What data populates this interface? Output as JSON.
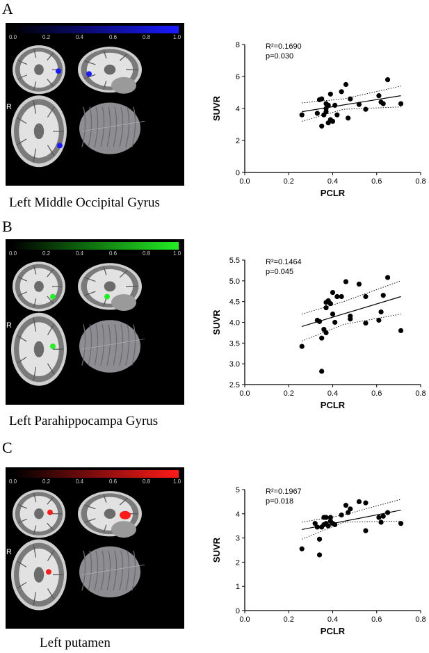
{
  "panels": [
    {
      "letter": "A",
      "caption": "Left Middle Occipital Gyrus",
      "overlay_color": "#1a1aff",
      "colorbar_ticks": [
        "0.0",
        "0.2",
        "0.4",
        "0.6",
        "0.8",
        "1.0"
      ],
      "side_label": "R"
    },
    {
      "letter": "B",
      "caption": "Left Parahippocampa Gyrus",
      "overlay_color": "#22ee22",
      "colorbar_ticks": [
        "0.0",
        "0.2",
        "0.4",
        "0.6",
        "0.8",
        "1.0"
      ],
      "side_label": "R"
    },
    {
      "letter": "C",
      "caption": "Left putamen",
      "overlay_color": "#ff1a1a",
      "colorbar_ticks": [
        "0.0",
        "0.2",
        "0.4",
        "0.6",
        "0.8",
        "1.0"
      ],
      "side_label": "R"
    }
  ],
  "chart_data": [
    {
      "type": "scatter",
      "xlabel": "PCLR",
      "ylabel": "SUVR",
      "xlim": [
        0.0,
        0.8
      ],
      "ylim": [
        0,
        8
      ],
      "xticks": [
        "0.0",
        "0.2",
        "0.4",
        "0.6",
        "0.8"
      ],
      "yticks": [
        "0",
        "2",
        "4",
        "6",
        "8"
      ],
      "annotation_r2": "R²=0.1690",
      "annotation_p": "p=0.030",
      "points": [
        [
          0.26,
          3.6
        ],
        [
          0.33,
          3.7
        ],
        [
          0.34,
          4.55
        ],
        [
          0.35,
          4.6
        ],
        [
          0.35,
          2.9
        ],
        [
          0.36,
          3.6
        ],
        [
          0.37,
          4.3
        ],
        [
          0.37,
          4.0
        ],
        [
          0.37,
          3.8
        ],
        [
          0.38,
          4.2
        ],
        [
          0.38,
          3.1
        ],
        [
          0.39,
          4.9
        ],
        [
          0.39,
          3.3
        ],
        [
          0.4,
          3.2
        ],
        [
          0.41,
          4.2
        ],
        [
          0.42,
          3.6
        ],
        [
          0.44,
          5.05
        ],
        [
          0.46,
          5.5
        ],
        [
          0.47,
          3.4
        ],
        [
          0.48,
          4.6
        ],
        [
          0.52,
          4.25
        ],
        [
          0.55,
          3.95
        ],
        [
          0.61,
          4.8
        ],
        [
          0.62,
          4.4
        ],
        [
          0.63,
          4.3
        ],
        [
          0.65,
          5.8
        ],
        [
          0.71,
          4.3
        ]
      ],
      "fit": {
        "x": [
          0.26,
          0.71
        ],
        "y": [
          3.8,
          4.8
        ]
      },
      "ci_upper": {
        "x": [
          0.26,
          0.45,
          0.71
        ],
        "y": [
          4.35,
          4.6,
          5.4
        ]
      },
      "ci_lower": {
        "x": [
          0.26,
          0.45,
          0.71
        ],
        "y": [
          3.2,
          3.95,
          4.1
        ]
      }
    },
    {
      "type": "scatter",
      "xlabel": "PCLR",
      "ylabel": "SUVR",
      "xlim": [
        0.0,
        0.8
      ],
      "ylim": [
        2.5,
        5.5
      ],
      "xticks": [
        "0.0",
        "0.2",
        "0.4",
        "0.6",
        "0.8"
      ],
      "yticks": [
        "2.5",
        "3.0",
        "3.5",
        "4.0",
        "4.5",
        "5.0",
        "5.5"
      ],
      "annotation_r2": "R²=0.1464",
      "annotation_p": "p=0.045",
      "points": [
        [
          0.26,
          3.42
        ],
        [
          0.33,
          4.05
        ],
        [
          0.34,
          4.02
        ],
        [
          0.35,
          3.62
        ],
        [
          0.35,
          2.82
        ],
        [
          0.36,
          3.83
        ],
        [
          0.37,
          4.48
        ],
        [
          0.37,
          4.35
        ],
        [
          0.37,
          3.75
        ],
        [
          0.38,
          4.52
        ],
        [
          0.39,
          4.45
        ],
        [
          0.4,
          4.72
        ],
        [
          0.4,
          4.2
        ],
        [
          0.41,
          4.0
        ],
        [
          0.42,
          4.62
        ],
        [
          0.44,
          4.62
        ],
        [
          0.46,
          4.98
        ],
        [
          0.48,
          4.15
        ],
        [
          0.48,
          4.08
        ],
        [
          0.52,
          4.92
        ],
        [
          0.55,
          4.62
        ],
        [
          0.55,
          3.98
        ],
        [
          0.61,
          4.05
        ],
        [
          0.62,
          4.25
        ],
        [
          0.63,
          4.65
        ],
        [
          0.65,
          5.08
        ],
        [
          0.71,
          3.8
        ]
      ],
      "fit": {
        "x": [
          0.26,
          0.71
        ],
        "y": [
          3.9,
          4.62
        ]
      },
      "ci_upper": {
        "x": [
          0.26,
          0.45,
          0.71
        ],
        "y": [
          4.2,
          4.5,
          5.0
        ]
      },
      "ci_lower": {
        "x": [
          0.26,
          0.45,
          0.71
        ],
        "y": [
          3.55,
          3.95,
          4.2
        ]
      }
    },
    {
      "type": "scatter",
      "xlabel": "PCLR",
      "ylabel": "SUVR",
      "xlim": [
        0.0,
        0.8
      ],
      "ylim": [
        0,
        5
      ],
      "xticks": [
        "0.0",
        "0.2",
        "0.4",
        "0.6",
        "0.8"
      ],
      "yticks": [
        "0",
        "1",
        "2",
        "3",
        "4",
        "5"
      ],
      "annotation_r2": "R²=0.1967",
      "annotation_p": "p=0.018",
      "points": [
        [
          0.26,
          2.55
        ],
        [
          0.32,
          3.6
        ],
        [
          0.33,
          3.45
        ],
        [
          0.34,
          2.95
        ],
        [
          0.34,
          2.3
        ],
        [
          0.35,
          3.45
        ],
        [
          0.36,
          3.85
        ],
        [
          0.36,
          3.55
        ],
        [
          0.37,
          3.6
        ],
        [
          0.37,
          3.85
        ],
        [
          0.38,
          3.5
        ],
        [
          0.39,
          3.7
        ],
        [
          0.39,
          3.85
        ],
        [
          0.4,
          3.6
        ],
        [
          0.41,
          3.55
        ],
        [
          0.44,
          3.95
        ],
        [
          0.46,
          4.35
        ],
        [
          0.47,
          4.05
        ],
        [
          0.48,
          4.2
        ],
        [
          0.52,
          4.5
        ],
        [
          0.55,
          3.3
        ],
        [
          0.55,
          4.45
        ],
        [
          0.61,
          3.85
        ],
        [
          0.62,
          3.65
        ],
        [
          0.63,
          3.9
        ],
        [
          0.65,
          4.05
        ],
        [
          0.71,
          3.6
        ]
      ],
      "fit": {
        "x": [
          0.26,
          0.71
        ],
        "y": [
          3.35,
          4.15
        ]
      },
      "ci_upper": {
        "x": [
          0.26,
          0.45,
          0.71
        ],
        "y": [
          3.65,
          3.95,
          4.6
        ]
      },
      "ci_lower": {
        "x": [
          0.26,
          0.45,
          0.71
        ],
        "y": [
          2.95,
          3.65,
          3.7
        ]
      }
    }
  ]
}
